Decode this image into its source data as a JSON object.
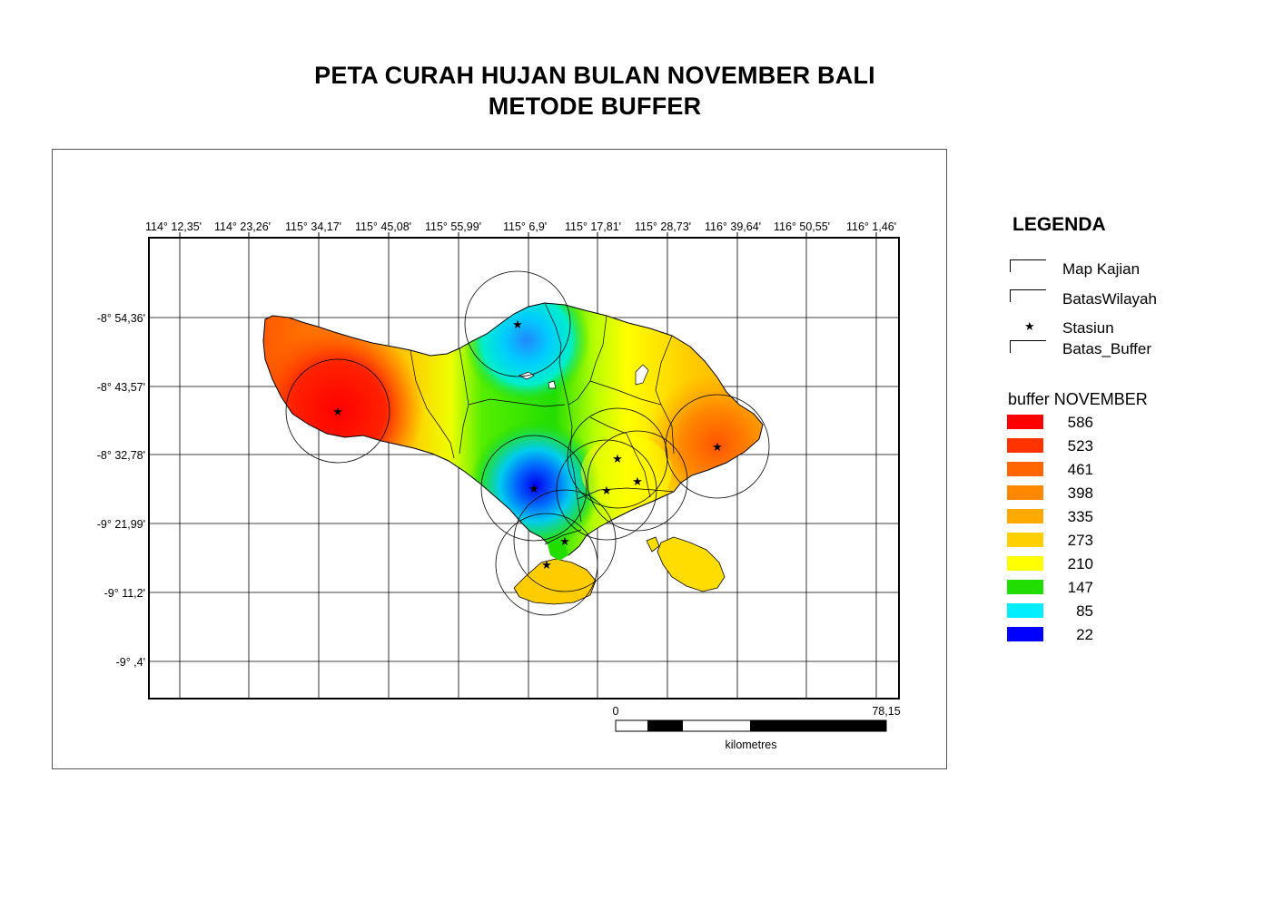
{
  "title": {
    "line1": "PETA CURAH HUJAN BULAN NOVEMBER BALI",
    "line2": "METODE BUFFER"
  },
  "axes": {
    "top_ticks": [
      "114° 12,35'",
      "114° 23,26'",
      "115° 34,17'",
      "115° 45,08'",
      "115° 55,99'",
      "115° 6,9'",
      "115° 17,81'",
      "115° 28,73'",
      "116° 39,64'",
      "116° 50,55'",
      "116° 1,46'"
    ],
    "left_ticks": [
      "-8° 54,36'",
      "-8° 43,57'",
      "-8° 32,78'",
      "-9° 21,99'",
      "-9° 11,2'",
      "-9° ,4'"
    ]
  },
  "scale_bar": {
    "start_label": "0",
    "end_label": "78,15",
    "unit": "kilometres"
  },
  "legend": {
    "title": "LEGENDA",
    "items": [
      {
        "label": "Map Kajian",
        "symbol": "box"
      },
      {
        "label": "BatasWilayah",
        "symbol": "box"
      },
      {
        "label": "Stasiun",
        "symbol": "star"
      },
      {
        "label": "Batas_Buffer",
        "symbol": "box"
      }
    ],
    "color_title": "buffer NOVEMBER",
    "classes": [
      {
        "value": "586",
        "color": "#ff0000"
      },
      {
        "value": "523",
        "color": "#ff3300"
      },
      {
        "value": "461",
        "color": "#ff6600"
      },
      {
        "value": "398",
        "color": "#ff8800"
      },
      {
        "value": "335",
        "color": "#ffaa00"
      },
      {
        "value": "273",
        "color": "#ffd000"
      },
      {
        "value": "210",
        "color": "#ffff00"
      },
      {
        "value": "147",
        "color": "#22dd00"
      },
      {
        "value": "85",
        "color": "#00eeff"
      },
      {
        "value": "22",
        "color": "#0000ff"
      }
    ]
  }
}
